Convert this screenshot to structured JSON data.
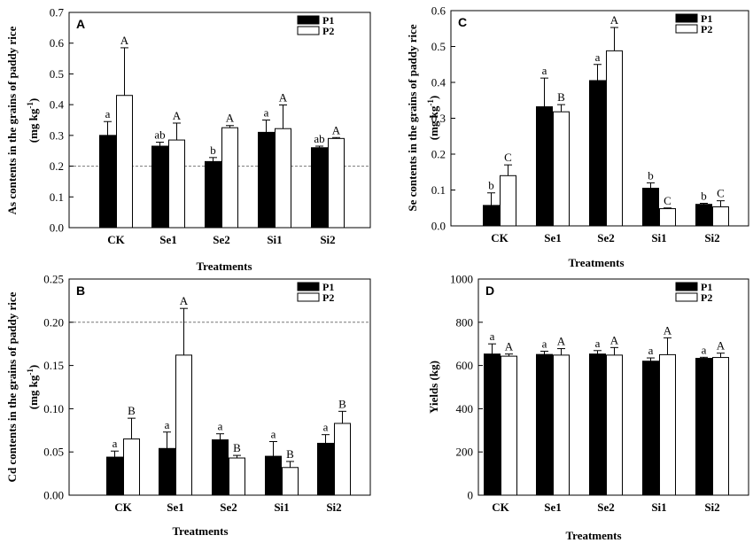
{
  "chart_data": [
    {
      "panel": "A",
      "type": "bar",
      "ylabel": "As contents in the grains of paddy rice",
      "yunit": "(mg kg-1)",
      "xlabel": "Treatments",
      "categories": [
        "CK",
        "Se1",
        "Se2",
        "Si1",
        "Si2"
      ],
      "ylim": [
        0,
        0.7
      ],
      "yticks": [
        "0.0",
        "0.1",
        "0.2",
        "0.3",
        "0.4",
        "0.5",
        "0.6",
        "0.7"
      ],
      "reference_line": 0.2,
      "legend": [
        "P1",
        "P2"
      ],
      "legend_position": "top-right",
      "series": [
        {
          "name": "P1",
          "color": "#000000",
          "values": [
            0.3,
            0.265,
            0.215,
            0.31,
            0.26
          ],
          "errors": [
            0.045,
            0.013,
            0.013,
            0.04,
            0.005
          ],
          "labels": [
            "a",
            "ab",
            "b",
            "a",
            "ab"
          ]
        },
        {
          "name": "P2",
          "color": "#ffffff",
          "values": [
            0.43,
            0.285,
            0.325,
            0.322,
            0.29
          ],
          "errors": [
            0.155,
            0.055,
            0.007,
            0.077,
            0.003
          ],
          "labels": [
            "A",
            "A",
            "A",
            "A",
            "A"
          ]
        }
      ]
    },
    {
      "panel": "C",
      "type": "bar",
      "ylabel": "Se contents in the grains of paddy rice",
      "yunit": "(mg kg-1)",
      "xlabel": "Treatments",
      "categories": [
        "CK",
        "Se1",
        "Se2",
        "Si1",
        "Si2"
      ],
      "ylim": [
        0,
        0.6
      ],
      "yticks": [
        "0.0",
        "0.1",
        "0.2",
        "0.3",
        "0.4",
        "0.5",
        "0.6"
      ],
      "reference_line": null,
      "legend": [
        "P1",
        "P2"
      ],
      "legend_position": "top-right",
      "series": [
        {
          "name": "P1",
          "color": "#000000",
          "values": [
            0.057,
            0.332,
            0.405,
            0.105,
            0.06
          ],
          "errors": [
            0.035,
            0.08,
            0.045,
            0.015,
            0.003
          ],
          "labels": [
            "b",
            "a",
            "a",
            "b",
            "b"
          ]
        },
        {
          "name": "P2",
          "color": "#ffffff",
          "values": [
            0.14,
            0.318,
            0.488,
            0.048,
            0.053
          ],
          "errors": [
            0.03,
            0.02,
            0.065,
            0.002,
            0.017
          ],
          "labels": [
            "C",
            "B",
            "A",
            "C",
            "C"
          ]
        }
      ]
    },
    {
      "panel": "B",
      "type": "bar",
      "ylabel": "Cd contents in the grains of paddy rice",
      "yunit": "(mg kg-1)",
      "xlabel": "Treatments",
      "categories": [
        "CK",
        "Se1",
        "Se2",
        "Si1",
        "Si2"
      ],
      "ylim": [
        0,
        0.25
      ],
      "yticks": [
        "0.00",
        "0.05",
        "0.10",
        "0.15",
        "0.20",
        "0.25"
      ],
      "reference_line": 0.2,
      "legend": [
        "P1",
        "P2"
      ],
      "legend_position": "top-right",
      "series": [
        {
          "name": "P1",
          "color": "#000000",
          "values": [
            0.044,
            0.054,
            0.064,
            0.045,
            0.06
          ],
          "errors": [
            0.007,
            0.019,
            0.007,
            0.017,
            0.01
          ],
          "labels": [
            "a",
            "a",
            "a",
            "a",
            "a"
          ]
        },
        {
          "name": "P2",
          "color": "#ffffff",
          "values": [
            0.065,
            0.162,
            0.043,
            0.032,
            0.083
          ],
          "errors": [
            0.024,
            0.054,
            0.003,
            0.007,
            0.014
          ],
          "labels": [
            "B",
            "A",
            "B",
            "B",
            "B"
          ]
        }
      ]
    },
    {
      "panel": "D",
      "type": "bar",
      "ylabel": "Yields (kg)",
      "yunit": "",
      "xlabel": "Treatments",
      "categories": [
        "CK",
        "Se1",
        "Se2",
        "Si1",
        "Si2"
      ],
      "ylim": [
        0,
        1000
      ],
      "yticks": [
        "0",
        "200",
        "400",
        "600",
        "800",
        "1000"
      ],
      "reference_line": null,
      "legend": [
        "P1",
        "P2"
      ],
      "legend_position": "top-right",
      "series": [
        {
          "name": "P1",
          "color": "#000000",
          "values": [
            653,
            651,
            653,
            620,
            633
          ],
          "errors": [
            47,
            15,
            16,
            15,
            5
          ],
          "labels": [
            "a",
            "a",
            "a",
            "a",
            "a"
          ]
        },
        {
          "name": "P2",
          "color": "#ffffff",
          "values": [
            643,
            648,
            648,
            650,
            637
          ],
          "errors": [
            10,
            30,
            35,
            78,
            20
          ],
          "labels": [
            "A",
            "A",
            "A",
            "A",
            "A"
          ]
        }
      ]
    }
  ]
}
